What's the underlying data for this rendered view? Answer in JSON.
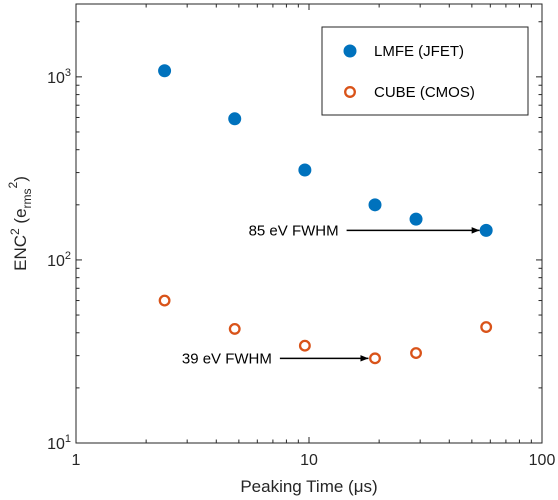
{
  "chart_data": {
    "type": "scatter",
    "xscale": "log",
    "yscale": "log",
    "xlim": [
      1,
      100
    ],
    "ylim": [
      10,
      2500
    ],
    "xlabel": "Peaking Time (μs)",
    "ylabel": "ENC² (e_rms²)",
    "xticks": [
      {
        "value": 1,
        "label": "1"
      },
      {
        "value": 10,
        "label": "10"
      },
      {
        "value": 100,
        "label": "100"
      }
    ],
    "yticks": [
      {
        "value": 10,
        "base": "10",
        "exp": "1"
      },
      {
        "value": 100,
        "base": "10",
        "exp": "2"
      },
      {
        "value": 1000,
        "base": "10",
        "exp": "3"
      }
    ],
    "legend_position": "top-right",
    "series": [
      {
        "name": "LMFE (JFET)",
        "marker": "filled-circle",
        "color": "#0072BD",
        "x": [
          2.4,
          4.8,
          9.6,
          19.2,
          28.8,
          57.6
        ],
        "y": [
          1080,
          590,
          310,
          200,
          167,
          145
        ]
      },
      {
        "name": "CUBE (CMOS)",
        "marker": "open-circle",
        "color": "#D95319",
        "x": [
          2.4,
          4.8,
          9.6,
          19.2,
          28.8,
          57.6
        ],
        "y": [
          60,
          42,
          34,
          29,
          31,
          43
        ]
      }
    ],
    "annotations": [
      {
        "text": "85 eV FWHM",
        "x_from": 14.5,
        "x_to": 54,
        "y": 145
      },
      {
        "text": "39 eV FWHM",
        "x_from": 7.5,
        "x_to": 18,
        "y": 29
      }
    ]
  }
}
